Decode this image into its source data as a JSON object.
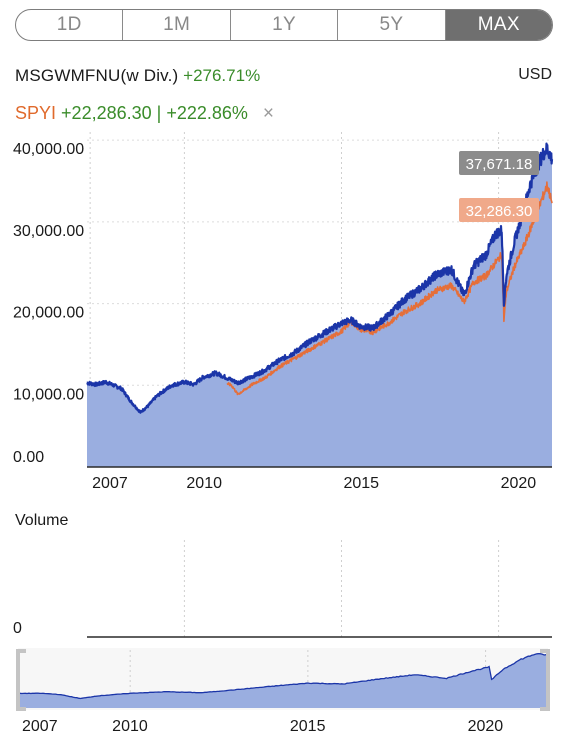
{
  "range_selector": {
    "options": [
      "1D",
      "1M",
      "1Y",
      "5Y",
      "MAX"
    ],
    "active": "MAX"
  },
  "legend": {
    "main_ticker": "MSGWMFNU(w Div.)",
    "main_change": "+276.71%",
    "currency": "USD",
    "compare_ticker": "SPYI",
    "compare_change": "+22,286.30 | +222.86%",
    "close_symbol": "×"
  },
  "colors": {
    "main_line": "#1b35a8",
    "main_fill": "#9aaee0",
    "compare_line": "#e56f3a",
    "main_badge": "#8c8c8c",
    "compare_badge": "#f0a98a"
  },
  "chart_data": [
    {
      "type": "line",
      "y_tick_labels": [
        "40,000.00",
        "30,000.00",
        "20,000.00",
        "10,000.00",
        "0.00"
      ],
      "y_ticks": [
        40000,
        30000,
        20000,
        10000,
        0
      ],
      "ylim": [
        0,
        41000
      ],
      "x_tick_labels": [
        "2007",
        "2010",
        "2015",
        "2020"
      ],
      "x_ticks": [
        2007,
        2010,
        2015,
        2020
      ],
      "xlim": [
        2006.9,
        2021.7
      ],
      "grid": true,
      "last_value_badges": [
        {
          "series": "MSGWMFNU(w Div.)",
          "label": "37,671.18"
        },
        {
          "series": "SPYI",
          "label": "32,286.30"
        }
      ],
      "series": [
        {
          "name": "MSGWMFNU(w Div.)",
          "role": "main",
          "x": [
            2006.9,
            2007.2,
            2007.5,
            2007.75,
            2008.0,
            2008.3,
            2008.6,
            2008.85,
            2009.1,
            2009.3,
            2009.6,
            2010.0,
            2010.3,
            2010.6,
            2011.0,
            2011.3,
            2011.7,
            2012.0,
            2012.5,
            2013.0,
            2013.5,
            2014.0,
            2014.5,
            2015.0,
            2015.3,
            2015.6,
            2016.0,
            2016.5,
            2017.0,
            2017.5,
            2018.0,
            2018.5,
            2018.9,
            2019.2,
            2019.6,
            2019.9,
            2020.1,
            2020.17,
            2020.25,
            2020.5,
            2020.8,
            2021.0,
            2021.2,
            2021.4,
            2021.55,
            2021.7
          ],
          "y": [
            10300,
            10100,
            10400,
            10000,
            9600,
            8000,
            6700,
            7500,
            8600,
            9200,
            10000,
            10400,
            10100,
            11000,
            11500,
            11000,
            10300,
            10800,
            11700,
            13000,
            14000,
            15400,
            16500,
            17600,
            18000,
            17200,
            17000,
            18600,
            20500,
            21800,
            23500,
            24200,
            21000,
            24600,
            26000,
            28500,
            29000,
            20000,
            23500,
            27500,
            31500,
            34500,
            36500,
            38200,
            39000,
            37671
          ]
        },
        {
          "name": "SPYI",
          "role": "compare",
          "x": [
            2011.35,
            2011.5,
            2011.7,
            2011.9,
            2012.2,
            2012.6,
            2013.0,
            2013.5,
            2014.0,
            2014.5,
            2015.0,
            2015.3,
            2015.6,
            2016.0,
            2016.5,
            2017.0,
            2017.5,
            2018.0,
            2018.5,
            2018.9,
            2019.2,
            2019.6,
            2019.9,
            2020.1,
            2020.17,
            2020.25,
            2020.5,
            2020.8,
            2021.0,
            2021.2,
            2021.4,
            2021.55,
            2021.7
          ],
          "y": [
            10200,
            10000,
            8900,
            9400,
            10200,
            11000,
            12200,
            13300,
            14400,
            15500,
            16600,
            17800,
            16800,
            16500,
            17600,
            19000,
            20000,
            21600,
            22200,
            20200,
            22600,
            23400,
            25000,
            26000,
            18000,
            21500,
            24500,
            27000,
            29000,
            31000,
            33000,
            34500,
            32286
          ]
        }
      ]
    },
    {
      "type": "bar",
      "title": "Volume",
      "y_tick_labels": [
        "0"
      ],
      "x_tick_labels": [
        "2010",
        "2015",
        "2020"
      ],
      "values": []
    },
    {
      "type": "area",
      "role": "navigator",
      "x_tick_labels": [
        "2007",
        "2010",
        "2015",
        "2020"
      ],
      "series": [
        {
          "name": "MSGWMFNU(w Div.)",
          "x": [
            2006.9,
            2007.5,
            2008.0,
            2008.6,
            2009.1,
            2010.0,
            2011.0,
            2012.0,
            2013.0,
            2014.0,
            2015.0,
            2016.0,
            2017.0,
            2018.0,
            2018.9,
            2019.6,
            2020.1,
            2020.17,
            2020.5,
            2021.0,
            2021.4,
            2021.7
          ],
          "y": [
            10300,
            10400,
            9600,
            6700,
            8600,
            10400,
            11500,
            10800,
            13000,
            15400,
            17600,
            17000,
            20500,
            23500,
            21000,
            26000,
            29000,
            20000,
            27500,
            34500,
            38200,
            37671
          ]
        }
      ]
    }
  ]
}
